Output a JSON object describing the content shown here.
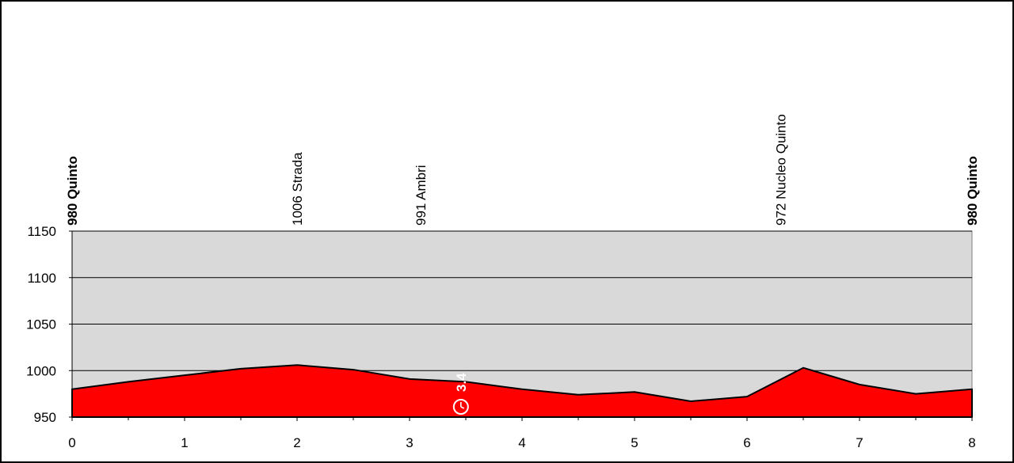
{
  "chart_data": {
    "type": "area",
    "title": "",
    "xlabel": "",
    "ylabel": "",
    "xlim": [
      0,
      8
    ],
    "ylim": [
      950,
      1150
    ],
    "x_ticks": [
      0,
      1,
      2,
      3,
      4,
      5,
      6,
      7,
      8
    ],
    "y_ticks": [
      950,
      1000,
      1050,
      1100,
      1150
    ],
    "grid": true,
    "colors": {
      "fill": "#ff0000",
      "plot_background": "#d9d9d9",
      "outline": "#000000"
    },
    "profile": {
      "x": [
        0,
        0.5,
        1,
        1.5,
        2,
        2.5,
        3,
        3.5,
        4,
        4.5,
        5,
        5.5,
        6,
        6.5,
        7,
        7.5,
        8
      ],
      "y": [
        980,
        988,
        995,
        1002,
        1006,
        1001,
        991,
        988,
        980,
        974,
        977,
        967,
        972,
        1003,
        985,
        975,
        980
      ]
    },
    "locations": [
      {
        "x": 0,
        "label": "980 Quinto",
        "bold": true
      },
      {
        "x": 2,
        "label": "1006 Strada",
        "bold": false
      },
      {
        "x": 3.1,
        "label": "991 Ambri",
        "bold": false
      },
      {
        "x": 6.3,
        "label": "972 Nucleo Quinto",
        "bold": false
      },
      {
        "x": 8,
        "label": "980 Quinto",
        "bold": true
      }
    ],
    "checkpoint": {
      "x": 3.4,
      "label": "3.4",
      "icon": "clock-icon"
    }
  }
}
